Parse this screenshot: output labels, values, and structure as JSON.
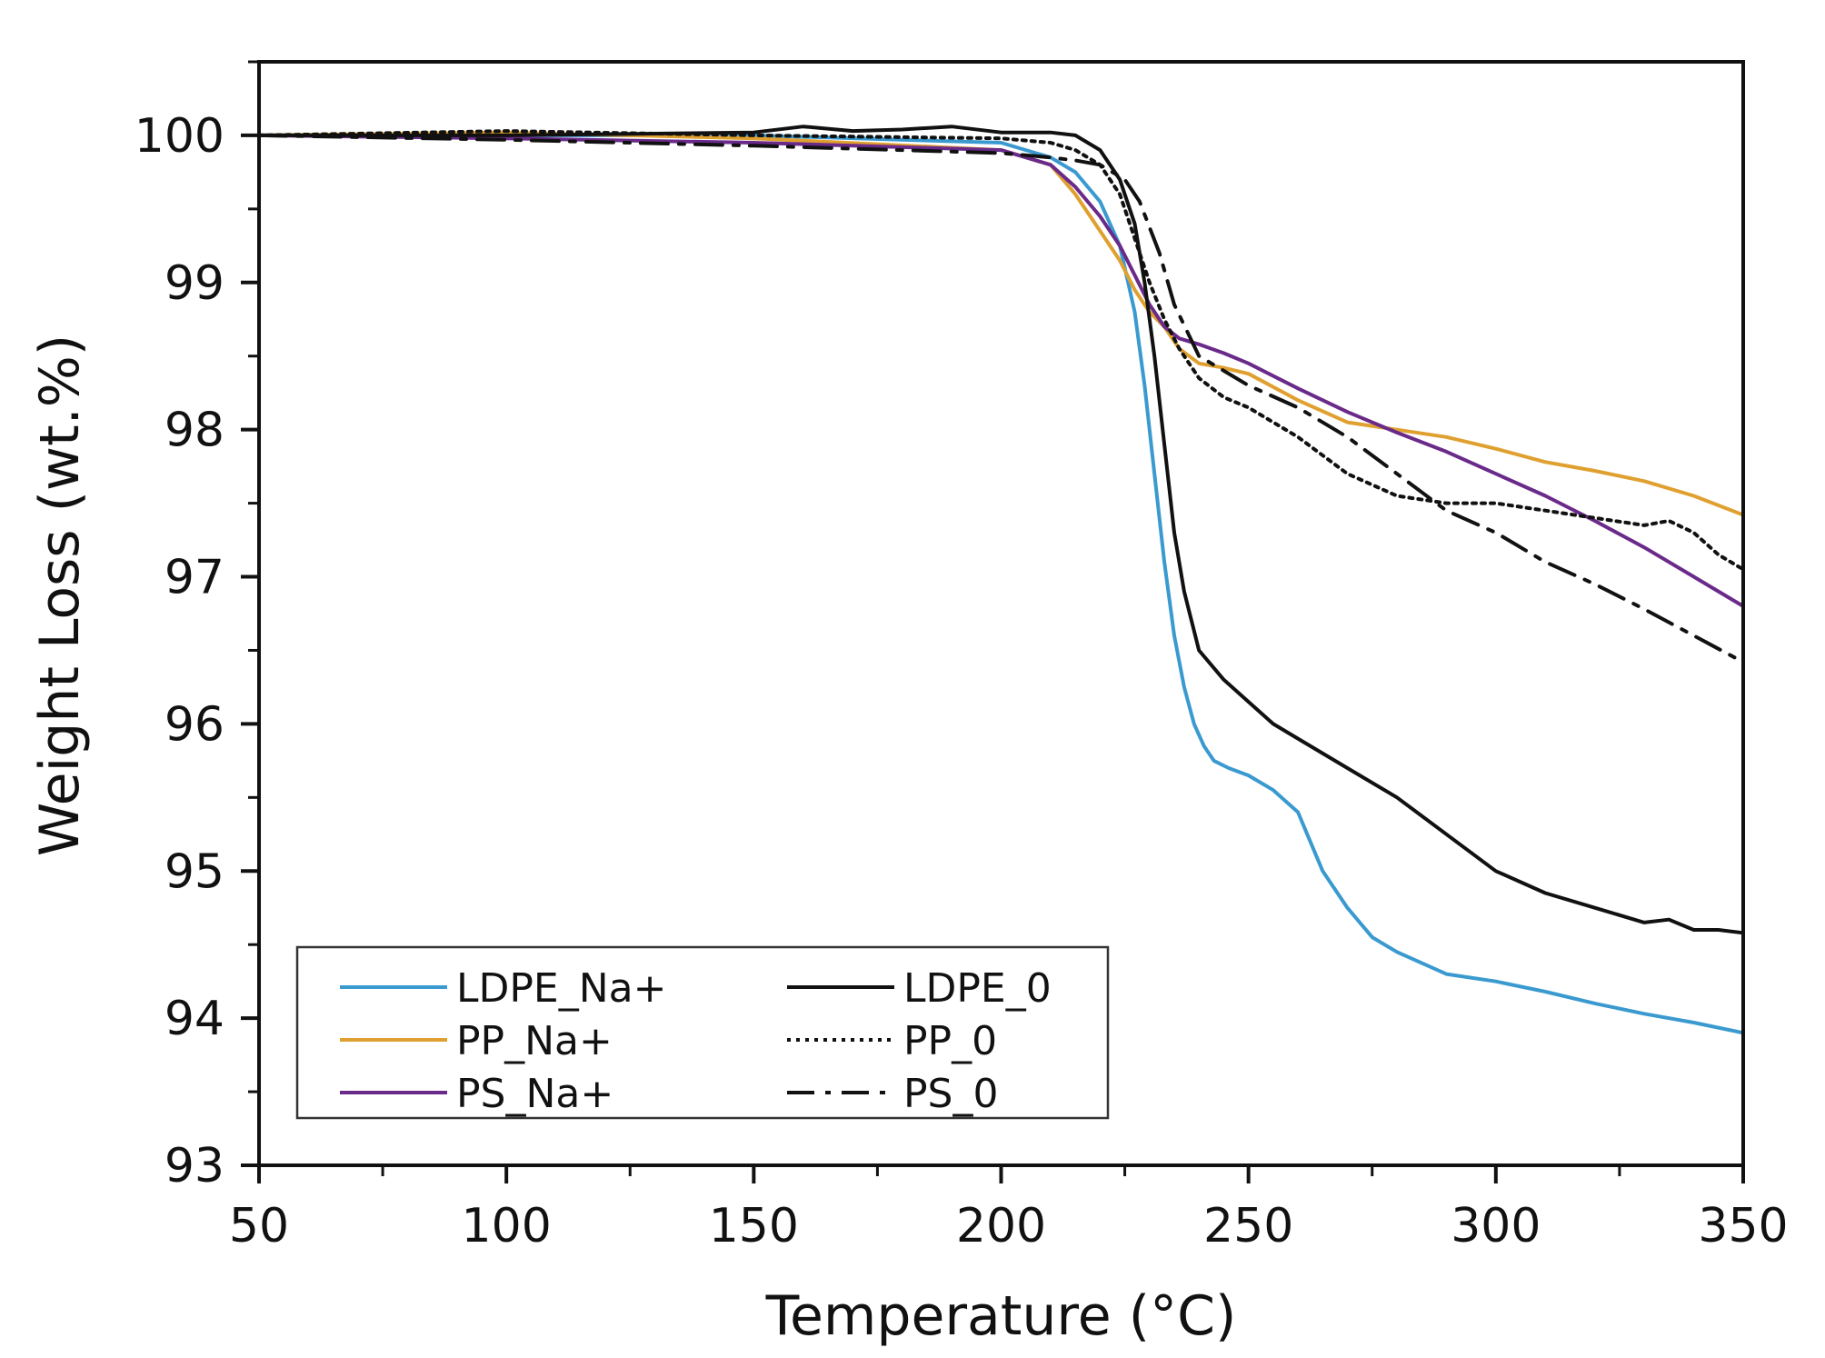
{
  "chart_data": {
    "type": "line",
    "title": "",
    "xlabel": "Temperature (°C)",
    "ylabel": "Weight Loss (wt.%)",
    "xlim": [
      50,
      350
    ],
    "ylim": [
      93,
      100.5
    ],
    "xticks": [
      50,
      100,
      150,
      200,
      250,
      300,
      350
    ],
    "yticks": [
      93,
      94,
      95,
      96,
      97,
      98,
      99,
      100
    ],
    "xtick_labels": [
      "50",
      "100",
      "150",
      "200",
      "250",
      "300",
      "350"
    ],
    "ytick_labels": [
      "93",
      "94",
      "95",
      "96",
      "97",
      "98",
      "99",
      "100"
    ],
    "grid": false,
    "legend_position": "bottom-left",
    "series": [
      {
        "name": "LDPE_Na+",
        "color": "#3a9ad0",
        "dash": "solid",
        "x": [
          50,
          100,
          150,
          200,
          210,
          215,
          220,
          224,
          227,
          229,
          231,
          233,
          235,
          237,
          239,
          241,
          243,
          246,
          250,
          255,
          260,
          265,
          270,
          275,
          280,
          290,
          300,
          310,
          320,
          330,
          340,
          350
        ],
        "y": [
          100,
          100,
          100,
          99.95,
          99.85,
          99.75,
          99.55,
          99.25,
          98.8,
          98.3,
          97.7,
          97.1,
          96.6,
          96.25,
          96.0,
          95.85,
          95.75,
          95.7,
          95.65,
          95.55,
          95.4,
          95.0,
          94.75,
          94.55,
          94.45,
          94.3,
          94.25,
          94.18,
          94.1,
          94.03,
          93.97,
          93.9
        ]
      },
      {
        "name": "LDPE_0",
        "color": "#111111",
        "dash": "solid",
        "x": [
          50,
          100,
          150,
          160,
          170,
          180,
          190,
          200,
          210,
          215,
          220,
          224,
          227,
          229,
          231,
          233,
          235,
          237,
          240,
          245,
          250,
          255,
          260,
          270,
          280,
          290,
          300,
          310,
          320,
          330,
          335,
          340,
          345,
          350
        ],
        "y": [
          100,
          100,
          100.02,
          100.06,
          100.03,
          100.04,
          100.06,
          100.02,
          100.02,
          100.0,
          99.9,
          99.7,
          99.4,
          99.0,
          98.5,
          97.9,
          97.3,
          96.9,
          96.5,
          96.3,
          96.15,
          96.0,
          95.9,
          95.7,
          95.5,
          95.25,
          95.0,
          94.85,
          94.75,
          94.65,
          94.67,
          94.6,
          94.6,
          94.58
        ]
      },
      {
        "name": "PP_Na+",
        "color": "#e0a030",
        "dash": "solid",
        "x": [
          50,
          100,
          150,
          200,
          210,
          215,
          220,
          224,
          227,
          230,
          233,
          236,
          240,
          245,
          250,
          260,
          270,
          280,
          290,
          300,
          310,
          320,
          330,
          340,
          350
        ],
        "y": [
          100,
          100.02,
          99.98,
          99.9,
          99.8,
          99.6,
          99.35,
          99.15,
          98.95,
          98.8,
          98.7,
          98.55,
          98.45,
          98.42,
          98.38,
          98.2,
          98.05,
          98.0,
          97.95,
          97.87,
          97.78,
          97.72,
          97.65,
          97.55,
          97.42
        ]
      },
      {
        "name": "PP_0",
        "color": "#111111",
        "dash": "dotted",
        "x": [
          50,
          100,
          150,
          200,
          210,
          215,
          220,
          224,
          227,
          230,
          233,
          236,
          240,
          245,
          250,
          260,
          270,
          280,
          290,
          300,
          310,
          320,
          330,
          335,
          340,
          345,
          350
        ],
        "y": [
          100,
          100.03,
          100.0,
          99.98,
          99.95,
          99.9,
          99.8,
          99.6,
          99.3,
          99.0,
          98.75,
          98.55,
          98.35,
          98.22,
          98.15,
          97.95,
          97.7,
          97.55,
          97.5,
          97.5,
          97.45,
          97.4,
          97.35,
          97.38,
          97.3,
          97.15,
          97.05
        ]
      },
      {
        "name": "PS_Na+",
        "color": "#6a2a8a",
        "dash": "solid",
        "x": [
          50,
          100,
          150,
          200,
          210,
          215,
          220,
          224,
          227,
          230,
          233,
          236,
          240,
          245,
          250,
          260,
          270,
          280,
          290,
          300,
          310,
          320,
          330,
          340,
          350
        ],
        "y": [
          100,
          99.98,
          99.95,
          99.9,
          99.8,
          99.65,
          99.45,
          99.25,
          99.05,
          98.85,
          98.7,
          98.62,
          98.58,
          98.52,
          98.45,
          98.28,
          98.12,
          97.98,
          97.85,
          97.7,
          97.55,
          97.38,
          97.2,
          97.0,
          96.8
        ]
      },
      {
        "name": "PS_0",
        "color": "#111111",
        "dash": "dashdot",
        "x": [
          50,
          100,
          150,
          200,
          210,
          215,
          220,
          225,
          228,
          232,
          235,
          240,
          245,
          250,
          260,
          270,
          280,
          290,
          300,
          310,
          320,
          330,
          340,
          350
        ],
        "y": [
          100,
          99.97,
          99.93,
          99.88,
          99.85,
          99.83,
          99.8,
          99.7,
          99.55,
          99.2,
          98.85,
          98.5,
          98.4,
          98.3,
          98.15,
          97.95,
          97.7,
          97.45,
          97.3,
          97.1,
          96.95,
          96.78,
          96.6,
          96.42
        ]
      }
    ]
  }
}
